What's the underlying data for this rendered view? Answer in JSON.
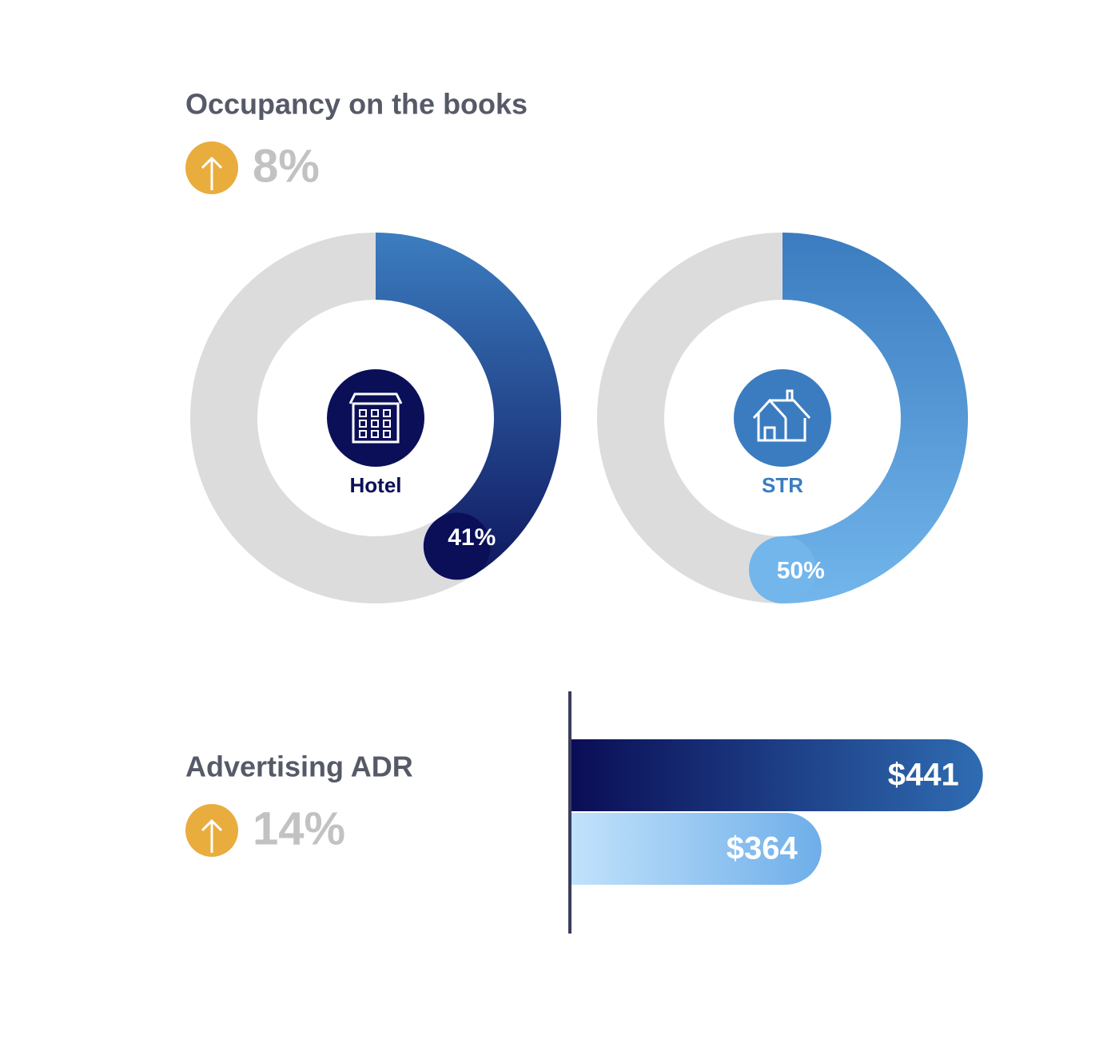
{
  "chart_data": [
    {
      "type": "donut",
      "title": "Occupancy on the books",
      "change": "8%",
      "categories": [
        "Hotel",
        "STR"
      ],
      "values": [
        41,
        50
      ],
      "value_labels": [
        "41%",
        "50%"
      ],
      "colors": [
        [
          "#3c7dc0",
          "#0b0f58"
        ],
        [
          "#3b7cc0",
          "#72b6ec"
        ]
      ],
      "icon_colors": [
        "#0b0f58",
        "#3b7cc0"
      ],
      "track_color": "#dcdcdc"
    },
    {
      "type": "hbar",
      "title": "Advertising ADR",
      "change": "14%",
      "values": [
        441,
        364
      ],
      "value_labels": [
        "$441",
        "$364"
      ],
      "colors": [
        [
          "#0a0d55",
          "#2f6cb2"
        ],
        [
          "#c2e2fb",
          "#6eaee9"
        ]
      ],
      "xlim": [
        244,
        480
      ]
    }
  ]
}
